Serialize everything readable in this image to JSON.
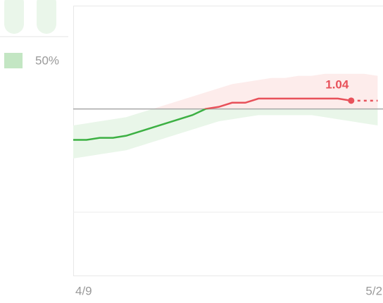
{
  "chart_data": {
    "type": "line",
    "legend_label": "50%",
    "categories": [
      "4/9",
      null,
      null,
      null,
      null,
      null,
      null,
      null,
      null,
      null,
      null,
      null,
      null,
      null,
      null,
      null,
      null,
      null,
      null,
      null,
      null,
      null,
      null,
      "5/2"
    ],
    "series": [
      {
        "color": "#3cb043",
        "color_above": "#e8515a",
        "values": [
          0.85,
          0.85,
          0.86,
          0.86,
          0.87,
          0.89,
          0.91,
          0.93,
          0.95,
          0.97,
          1.0,
          1.01,
          1.03,
          1.03,
          1.05,
          1.05,
          1.05,
          1.05,
          1.05,
          1.05,
          1.05,
          1.04,
          null,
          null
        ],
        "projection": [
          null,
          null,
          null,
          null,
          null,
          null,
          null,
          null,
          null,
          null,
          null,
          null,
          null,
          null,
          null,
          null,
          null,
          null,
          null,
          null,
          null,
          1.04,
          1.04,
          1.04
        ],
        "upper": [
          0.92,
          0.93,
          0.94,
          0.95,
          0.96,
          0.98,
          1.0,
          1.02,
          1.04,
          1.06,
          1.08,
          1.1,
          1.12,
          1.13,
          1.14,
          1.15,
          1.15,
          1.16,
          1.16,
          1.17,
          1.17,
          1.17,
          1.17,
          1.16
        ],
        "lower": [
          0.76,
          0.77,
          0.78,
          0.79,
          0.8,
          0.82,
          0.84,
          0.86,
          0.88,
          0.9,
          0.92,
          0.94,
          0.95,
          0.96,
          0.97,
          0.97,
          0.97,
          0.97,
          0.97,
          0.96,
          0.95,
          0.94,
          0.93,
          0.92
        ]
      }
    ],
    "threshold": 1,
    "ylim": [
      0.19,
      1.5
    ],
    "yticks": [
      0.5,
      1
    ],
    "grid": true
  }
}
